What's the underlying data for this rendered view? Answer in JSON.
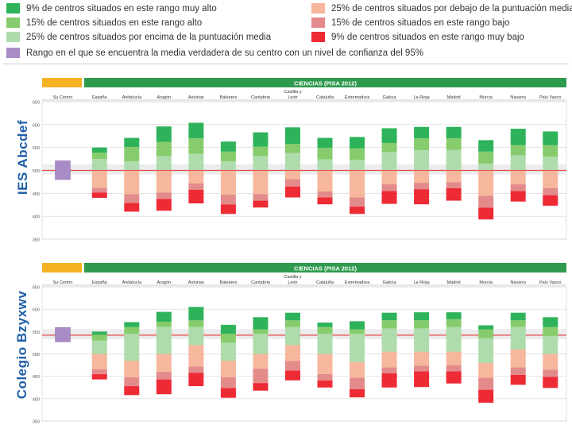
{
  "legend": {
    "items": [
      {
        "label": "9% de centros situados en este rango muy alto",
        "color": "#2eb35a"
      },
      {
        "label": "15% de centros situados en este rango alto",
        "color": "#86cc6c"
      },
      {
        "label": "25% de centros situados por encima de la puntuación media",
        "color": "#aedcac"
      },
      {
        "label": "Rango en el que se encuentra la media verdadera de su centro con un nivel de confianza del 95%",
        "color": "#a98cc6"
      },
      {
        "label": "25% de centros situados por debajo de la puntuación media",
        "color": "#f6b79c"
      },
      {
        "label": "15% de centros situados en este rango bajo",
        "color": "#e38b8b"
      },
      {
        "label": "9% de centros situados en este rango muy bajo",
        "color": "#ee2a34"
      }
    ]
  },
  "side_labels": [
    "IES Abcdef",
    "Colegio Bzyxwv"
  ],
  "chart_data": [
    {
      "type": "bar",
      "title": "CIENCIAS (PISA 2012)",
      "own_label": "Su Centro",
      "ylim": [
        350,
        650
      ],
      "yticks": [
        "650",
        "600",
        "550",
        "500",
        "450",
        "400",
        "350"
      ],
      "reference_line": 500,
      "reference_band": [
        491,
        513
      ],
      "own_center": {
        "low": 480,
        "high": 521
      },
      "categories": [
        "España",
        "Andalucía",
        "Aragón",
        "Asturias",
        "Baleares",
        "Cantabria",
        "Castilla y León",
        "Cataluña",
        "Extremadura",
        "Galicia",
        "La Rioja",
        "Madrid",
        "Murcia",
        "Navarra",
        "País Vasco"
      ],
      "series": [
        {
          "name": "9% muy bajo",
          "values": [
            [
              440,
              452
            ],
            [
              410,
              429
            ],
            [
              412,
              438
            ],
            [
              428,
              458
            ],
            [
              405,
              426
            ],
            [
              419,
              434
            ],
            [
              441,
              465
            ],
            [
              426,
              441
            ],
            [
              405,
              421
            ],
            [
              427,
              455
            ],
            [
              426,
              459
            ],
            [
              434,
              461
            ],
            [
              393,
              419
            ],
            [
              432,
              455
            ],
            [
              423,
              446
            ]
          ]
        },
        {
          "name": "15% bajo",
          "values": [
            [
              452,
              462
            ],
            [
              429,
              448
            ],
            [
              438,
              452
            ],
            [
              458,
              472
            ],
            [
              426,
              447
            ],
            [
              434,
              448
            ],
            [
              465,
              481
            ],
            [
              441,
              454
            ],
            [
              421,
              441
            ],
            [
              455,
              470
            ],
            [
              459,
              473
            ],
            [
              461,
              474
            ],
            [
              419,
              445
            ],
            [
              455,
              470
            ],
            [
              446,
              461
            ]
          ]
        },
        {
          "name": "25% debajo",
          "values": [
            [
              462,
              499
            ],
            [
              448,
              499
            ],
            [
              452,
              499
            ],
            [
              472,
              499
            ],
            [
              447,
              499
            ],
            [
              448,
              499
            ],
            [
              481,
              499
            ],
            [
              454,
              499
            ],
            [
              441,
              499
            ],
            [
              470,
              499
            ],
            [
              473,
              499
            ],
            [
              474,
              499
            ],
            [
              445,
              499
            ],
            [
              470,
              499
            ],
            [
              461,
              499
            ]
          ]
        },
        {
          "name": "25% encima",
          "values": [
            [
              501,
              525
            ],
            [
              501,
              520
            ],
            [
              501,
              531
            ],
            [
              501,
              536
            ],
            [
              501,
              520
            ],
            [
              501,
              531
            ],
            [
              501,
              538
            ],
            [
              501,
              524
            ],
            [
              501,
              523
            ],
            [
              501,
              540
            ],
            [
              501,
              544
            ],
            [
              501,
              545
            ],
            [
              501,
              515
            ],
            [
              501,
              533
            ],
            [
              501,
              530
            ]
          ]
        },
        {
          "name": "15% alto",
          "values": [
            [
              525,
              539
            ],
            [
              520,
              551
            ],
            [
              531,
              562
            ],
            [
              536,
              570
            ],
            [
              520,
              541
            ],
            [
              531,
              552
            ],
            [
              538,
              558
            ],
            [
              524,
              549
            ],
            [
              523,
              548
            ],
            [
              540,
              560
            ],
            [
              544,
              570
            ],
            [
              545,
              570
            ],
            [
              515,
              541
            ],
            [
              533,
              555
            ],
            [
              530,
              555
            ]
          ]
        },
        {
          "name": "9% muy alto",
          "values": [
            [
              539,
              550
            ],
            [
              551,
              571
            ],
            [
              562,
              596
            ],
            [
              570,
              604
            ],
            [
              541,
              563
            ],
            [
              552,
              583
            ],
            [
              558,
              594
            ],
            [
              549,
              571
            ],
            [
              548,
              573
            ],
            [
              560,
              592
            ],
            [
              570,
              595
            ],
            [
              570,
              595
            ],
            [
              541,
              566
            ],
            [
              555,
              591
            ],
            [
              555,
              585
            ]
          ]
        }
      ]
    },
    {
      "type": "bar",
      "title": "CIENCIAS (PISA 2012)",
      "own_label": "Su Centro",
      "ylim": [
        350,
        650
      ],
      "yticks": [
        "650",
        "600",
        "550",
        "500",
        "450",
        "400",
        "350"
      ],
      "reference_line": 542,
      "reference_band": [
        533,
        555
      ],
      "own_center": {
        "low": 527,
        "high": 559
      },
      "categories": [
        "España",
        "Andalucía",
        "Aragón",
        "Asturias",
        "Baleares",
        "Cantabria",
        "Castilla y León",
        "Cataluña",
        "Extremadura",
        "Galicia",
        "La Rioja",
        "Madrid",
        "Murcia",
        "Navarra",
        "País Vasco"
      ],
      "series": [
        {
          "name": "9% muy bajo",
          "values": [
            [
              443,
              455
            ],
            [
              408,
              428
            ],
            [
              410,
              443
            ],
            [
              428,
              458
            ],
            [
              402,
              424
            ],
            [
              418,
              435
            ],
            [
              441,
              463
            ],
            [
              425,
              441
            ],
            [
              403,
              421
            ],
            [
              425,
              457
            ],
            [
              426,
              461
            ],
            [
              434,
              461
            ],
            [
              391,
              420
            ],
            [
              431,
              453
            ],
            [
              424,
              449
            ]
          ]
        },
        {
          "name": "15% bajo",
          "values": [
            [
              455,
              466
            ],
            [
              428,
              448
            ],
            [
              443,
              460
            ],
            [
              458,
              472
            ],
            [
              424,
              448
            ],
            [
              435,
              467
            ],
            [
              463,
              484
            ],
            [
              441,
              455
            ],
            [
              421,
              447
            ],
            [
              457,
              470
            ],
            [
              461,
              474
            ],
            [
              461,
              475
            ],
            [
              420,
              447
            ],
            [
              453,
              470
            ],
            [
              449,
              465
            ]
          ]
        },
        {
          "name": "25% debajo",
          "values": [
            [
              466,
              500
            ],
            [
              448,
              485
            ],
            [
              460,
              500
            ],
            [
              472,
              520
            ],
            [
              448,
              485
            ],
            [
              467,
              500
            ],
            [
              484,
              520
            ],
            [
              455,
              500
            ],
            [
              447,
              482
            ],
            [
              470,
              505
            ],
            [
              474,
              505
            ],
            [
              475,
              505
            ],
            [
              447,
              480
            ],
            [
              470,
              510
            ],
            [
              465,
              500
            ]
          ]
        },
        {
          "name": "25% encima",
          "values": [
            [
              500,
              530
            ],
            [
              485,
              545
            ],
            [
              500,
              560
            ],
            [
              520,
              560
            ],
            [
              485,
              525
            ],
            [
              500,
              545
            ],
            [
              520,
              560
            ],
            [
              500,
              545
            ],
            [
              482,
              545
            ],
            [
              505,
              557
            ],
            [
              505,
              557
            ],
            [
              505,
              560
            ],
            [
              480,
              535
            ],
            [
              510,
              560
            ],
            [
              500,
              540
            ]
          ]
        },
        {
          "name": "15% alto",
          "values": [
            [
              530,
              543
            ],
            [
              545,
              560
            ],
            [
              560,
              572
            ],
            [
              560,
              575
            ],
            [
              525,
              545
            ],
            [
              545,
              555
            ],
            [
              560,
              575
            ],
            [
              545,
              560
            ],
            [
              545,
              555
            ],
            [
              557,
              575
            ],
            [
              557,
              575
            ],
            [
              560,
              578
            ],
            [
              535,
              555
            ],
            [
              560,
              575
            ],
            [
              540,
              560
            ]
          ]
        },
        {
          "name": "9% muy alto",
          "values": [
            [
              543,
              550
            ],
            [
              560,
              571
            ],
            [
              572,
              594
            ],
            [
              575,
              605
            ],
            [
              545,
              565
            ],
            [
              555,
              582
            ],
            [
              575,
              592
            ],
            [
              560,
              570
            ],
            [
              555,
              573
            ],
            [
              575,
              592
            ],
            [
              575,
              593
            ],
            [
              578,
              593
            ],
            [
              555,
              564
            ],
            [
              575,
              592
            ],
            [
              560,
              582
            ]
          ]
        }
      ]
    }
  ]
}
